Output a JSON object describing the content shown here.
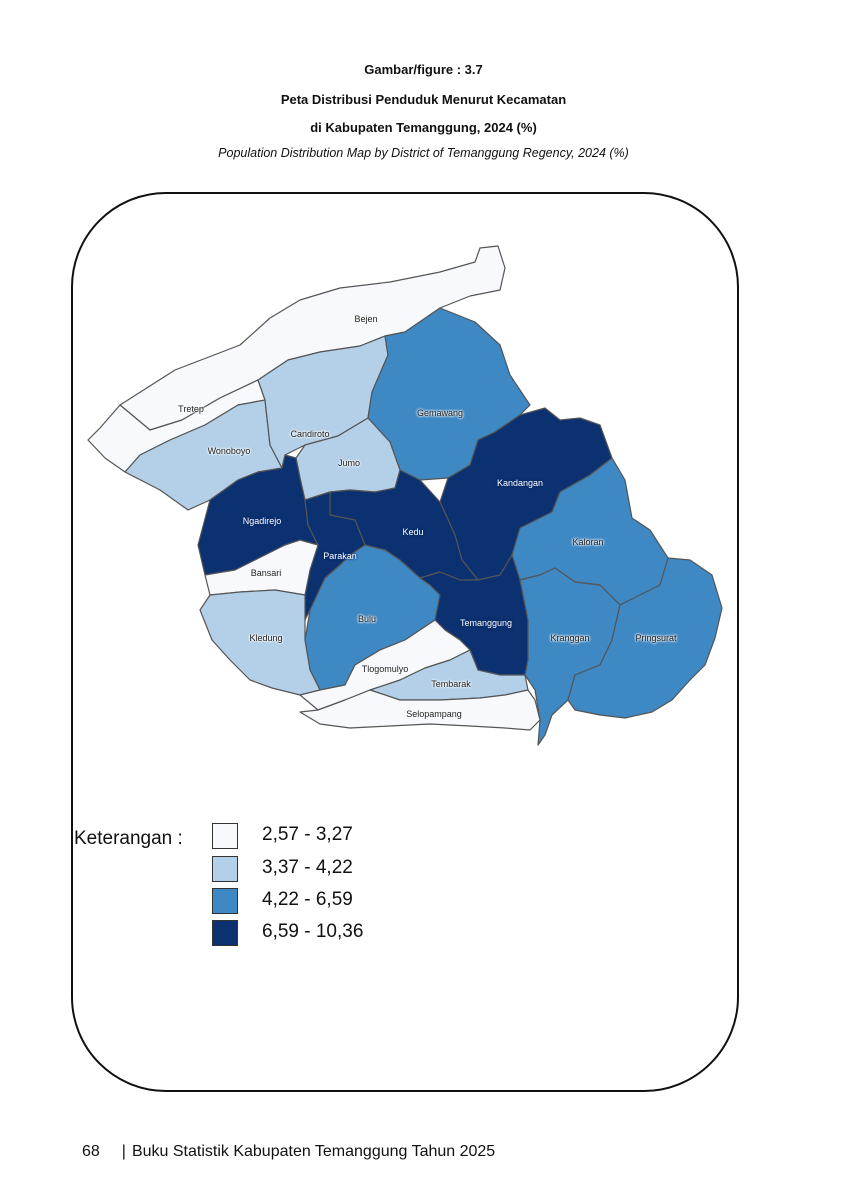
{
  "caption": {
    "label": "Gambar/figure : 3.7",
    "title_line1": "Peta Distribusi Penduduk  Menurut Kecamatan",
    "title_line2": "di Kabupaten Temanggung, 2024 (%)",
    "subtitle": "Population Distribution Map by District of Temanggung Regency, 2024 (%)"
  },
  "map": {
    "classes": [
      {
        "range": "2,57 - 3,27",
        "color": "#f7f9fd"
      },
      {
        "range": "3,37 - 4,22",
        "color": "#b3d0e8"
      },
      {
        "range": "4,22 - 6,59",
        "color": "#3e88c4"
      },
      {
        "range": "6,59 - 10,36",
        "color": "#0b3170"
      }
    ],
    "districts": [
      {
        "name": "Bejen",
        "class": 0
      },
      {
        "name": "Tretep",
        "class": 0
      },
      {
        "name": "Wonoboyo",
        "class": 1
      },
      {
        "name": "Candiroto",
        "class": 1
      },
      {
        "name": "Gemawang",
        "class": 2
      },
      {
        "name": "Jumo",
        "class": 1
      },
      {
        "name": "Kandangan",
        "class": 3
      },
      {
        "name": "Ngadirejo",
        "class": 3
      },
      {
        "name": "Kedu",
        "class": 3
      },
      {
        "name": "Parakan",
        "class": 3
      },
      {
        "name": "Kaloran",
        "class": 2
      },
      {
        "name": "Bansari",
        "class": 0
      },
      {
        "name": "Bulu",
        "class": 2
      },
      {
        "name": "Temanggung",
        "class": 3
      },
      {
        "name": "Kledung",
        "class": 1
      },
      {
        "name": "Kranggan",
        "class": 2
      },
      {
        "name": "Pringsurat",
        "class": 2
      },
      {
        "name": "Tlogomulyo",
        "class": 0
      },
      {
        "name": "Tembarak",
        "class": 1
      },
      {
        "name": "Selopampang",
        "class": 0
      }
    ]
  },
  "legend": {
    "title": "Keterangan :",
    "items": [
      {
        "range": "2,57 - 3,27",
        "color": "#f7f9fd"
      },
      {
        "range": "3,37 - 4,22",
        "color": "#b3d0e8"
      },
      {
        "range": "4,22 - 6,59",
        "color": "#3e88c4"
      },
      {
        "range": "6,59 - 10,36",
        "color": "#0b3170"
      }
    ]
  },
  "footer": {
    "page_number": "68",
    "book_title": "Buku Statistik Kabupaten Temanggung Tahun 2025"
  }
}
